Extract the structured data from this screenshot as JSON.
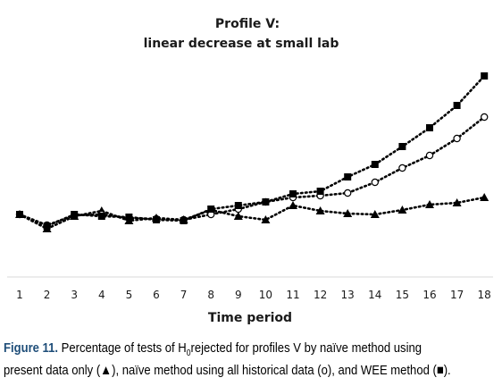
{
  "chart_data": {
    "type": "line",
    "title": "Profile V:",
    "subtitle": "linear decrease at small lab",
    "xlabel": "Time period",
    "ylabel": "",
    "x": [
      1,
      2,
      3,
      4,
      5,
      6,
      7,
      8,
      9,
      10,
      11,
      12,
      13,
      14,
      15,
      16,
      17,
      18
    ],
    "series": [
      {
        "marker": "triangle",
        "values": [
          240,
          256,
          242,
          236,
          247,
          244,
          246,
          235,
          242,
          246,
          230,
          236,
          239,
          240,
          235,
          229,
          227,
          221
        ]
      },
      {
        "marker": "open-circle",
        "values": [
          240,
          252,
          241,
          240,
          244,
          245,
          246,
          240,
          234,
          226,
          221,
          219,
          216,
          204,
          188,
          174,
          155,
          131
        ]
      },
      {
        "marker": "filled-square",
        "values": [
          240,
          253,
          240,
          242,
          243,
          246,
          247,
          234,
          230,
          226,
          217,
          214,
          198,
          184,
          164,
          143,
          118,
          85
        ]
      }
    ],
    "grid": false,
    "legend": "none",
    "colors": {
      "line": "#000000",
      "text": "#1a1a1a",
      "fig_label": "#1f4e79"
    }
  },
  "caption": {
    "figure_label": "Figure 11.",
    "text_before_sub": "Percentage of tests of H",
    "subscript": "0",
    "text_after_sub": "rejected for profiles V by naïve method using",
    "line2": "present data only (▲), naïve method using all historical data (o), and WEE method (■)."
  }
}
